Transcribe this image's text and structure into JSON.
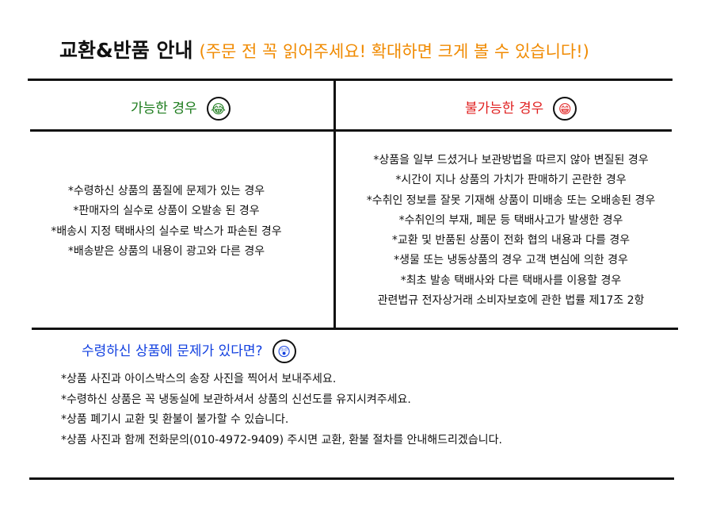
{
  "title": "교환&반품 안내",
  "subtitle": "(주문 전 꼭 읽어주세요! 확대하면 크게 볼 수 있습니다!)",
  "colors": {
    "subtitle": "#f08a00",
    "possible": "#1a7a1a",
    "impossible": "#e02020",
    "bottom_heading": "#1240e0"
  },
  "possible": {
    "heading": "가능한 경우",
    "icon": "crying-laughing-face-icon",
    "items": [
      "*수령하신 상품의 품질에 문제가 있는 경우",
      "*판매자의 실수로 상품이 오발송 된 경우",
      "*배송시 지정 택배사의 실수로 박스가 파손된 경우",
      "*배송받은 상품의 내용이 광고와 다른 경우"
    ]
  },
  "impossible": {
    "heading": "불가능한 경우",
    "icon": "grinning-face-icon",
    "items": [
      "*상품을 일부 드셨거나 보관방법을 따르지 않아 변질된 경우",
      "*시간이 지나 상품의 가치가 판매하기 곤란한 경우",
      "*수취인 정보를 잘못 기재해 상품이 미배송 또는 오배송된 경우",
      "*수취인의 부재, 폐문 등 택배사고가 발생한 경우",
      "*교환 및 반품된 상품이 전화 협의 내용과 다를 경우",
      "*생물 또는 냉동상품의 경우 고객 변심에 의한 경우",
      "*최초 발송 택배사와 다른 택배사를 이용할 경우",
      "관련법규 전자상거래 소비자보호에 관한 법률 제17조 2항"
    ]
  },
  "problem": {
    "heading": "수령하신 상품에 문제가 있다면?",
    "icon": "shocked-face-icon",
    "items": [
      "*상품 사진과 아이스박스의 송장 사진을 찍어서 보내주세요.",
      "*수령하신 상품은 꼭 냉동실에 보관하셔서 상품의 신선도를 유지시켜주세요.",
      "*상품 폐기시 교환 및 환불이 불가할 수 있습니다.",
      "*상품 사진과 함께 전화문의(010-4972-9409) 주시면 교환, 환불 절차를 안내해드리겠습니다."
    ]
  }
}
